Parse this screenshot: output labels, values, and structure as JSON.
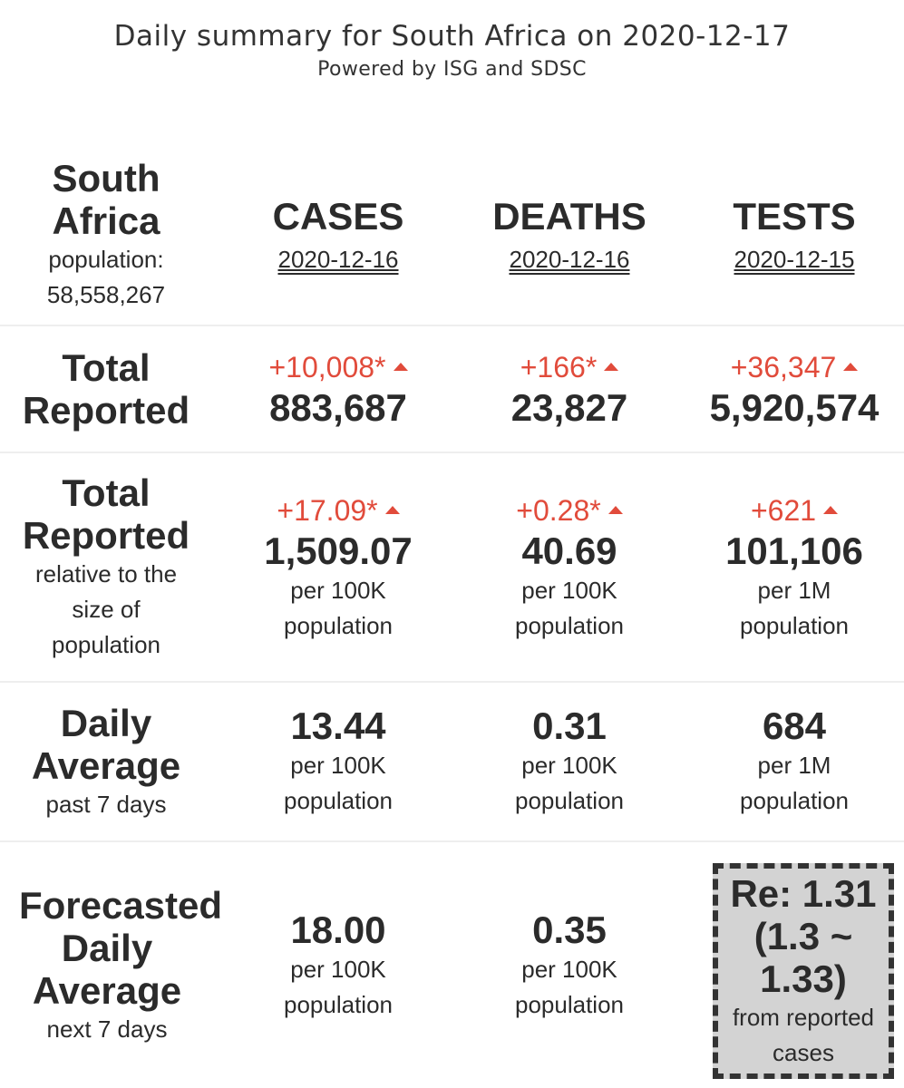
{
  "header": {
    "title": "Daily summary for South Africa on 2020-12-17",
    "subtitle": "Powered by ISG and SDSC"
  },
  "region": {
    "name_line1": "South",
    "name_line2": "Africa",
    "population_label": "population:",
    "population_value": "58,558,267"
  },
  "columns": [
    {
      "heading": "CASES",
      "date": "2020-12-16"
    },
    {
      "heading": "DEATHS",
      "date": "2020-12-16"
    },
    {
      "heading": "TESTS",
      "date": "2020-12-15"
    }
  ],
  "rows": {
    "total_reported": {
      "label_line1": "Total",
      "label_line2": "Reported",
      "cells": [
        {
          "delta": "+10,008*",
          "value": "883,687"
        },
        {
          "delta": "+166*",
          "value": "23,827"
        },
        {
          "delta": "+36,347",
          "value": "5,920,574"
        }
      ]
    },
    "relative": {
      "label_line1": "Total",
      "label_line2": "Reported",
      "note_line1": "relative to the",
      "note_line2": "size of",
      "note_line3": "population",
      "cells": [
        {
          "delta": "+17.09*",
          "value": "1,509.07",
          "unit_line1": "per 100K",
          "unit_line2": "population"
        },
        {
          "delta": "+0.28*",
          "value": "40.69",
          "unit_line1": "per 100K",
          "unit_line2": "population"
        },
        {
          "delta": "+621",
          "value": "101,106",
          "unit_line1": "per 1M",
          "unit_line2": "population"
        }
      ]
    },
    "daily_average": {
      "label_line1": "Daily",
      "label_line2": "Average",
      "note": "past 7 days",
      "cells": [
        {
          "value": "13.44",
          "unit_line1": "per 100K",
          "unit_line2": "population"
        },
        {
          "value": "0.31",
          "unit_line1": "per 100K",
          "unit_line2": "population"
        },
        {
          "value": "684",
          "unit_line1": "per 1M",
          "unit_line2": "population"
        }
      ]
    },
    "forecast": {
      "label_line1": "Forecasted",
      "label_line2": "Daily",
      "label_line3": "Average",
      "note": "next 7 days",
      "cells": [
        {
          "value": "18.00",
          "unit_line1": "per 100K",
          "unit_line2": "population"
        },
        {
          "value": "0.35",
          "unit_line1": "per 100K",
          "unit_line2": "population"
        }
      ],
      "re_box": {
        "line1": "Re: 1.31",
        "line2": "(1.3 ~",
        "line3": "1.33)",
        "note_line1": "from reported",
        "note_line2": "cases"
      }
    }
  },
  "colors": {
    "increase": "#e14b3b",
    "text": "#2b2b2b",
    "re_box_bg": "#d3d3d3"
  },
  "icons": {
    "increase": "triangle-up-icon"
  }
}
